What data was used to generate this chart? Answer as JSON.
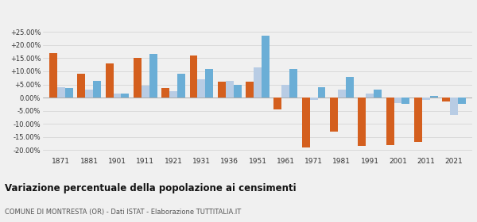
{
  "years": [
    1871,
    1881,
    1901,
    1911,
    1921,
    1931,
    1936,
    1951,
    1961,
    1971,
    1981,
    1991,
    2001,
    2011,
    2021
  ],
  "montresta": [
    17.0,
    9.0,
    13.0,
    15.0,
    3.5,
    16.0,
    6.0,
    6.0,
    -4.5,
    -19.0,
    -13.0,
    -18.5,
    -18.0,
    -17.0,
    -1.5
  ],
  "provincia_or": [
    4.0,
    3.0,
    1.5,
    4.5,
    2.5,
    7.0,
    6.5,
    11.5,
    5.0,
    -1.0,
    3.0,
    1.5,
    -2.0,
    -1.0,
    -6.5
  ],
  "sardegna": [
    3.5,
    6.5,
    1.5,
    16.5,
    9.0,
    11.0,
    5.0,
    23.5,
    11.0,
    4.0,
    8.0,
    3.0,
    -2.5,
    0.5,
    -2.5
  ],
  "montresta_color": "#d45f1e",
  "provincia_color": "#b8cce4",
  "sardegna_color": "#6baed6",
  "title": "Variazione percentuale della popolazione ai censimenti",
  "subtitle": "COMUNE DI MONTRESTA (OR) - Dati ISTAT - Elaborazione TUTTITALIA.IT",
  "yticks": [
    -20,
    -15,
    -10,
    -5,
    0,
    5,
    10,
    15,
    20,
    25
  ],
  "ylim": [
    -22,
    27
  ],
  "background_color": "#f0f0f0",
  "grid_color": "#d0d0d0",
  "bar_width": 0.28
}
